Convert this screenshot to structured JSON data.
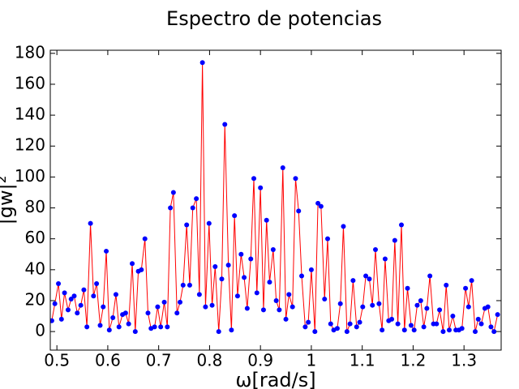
{
  "chart_data": {
    "type": "line",
    "title": "Espectro de potencias",
    "xlabel": "ω[rad/s]",
    "ylabel": "|gw|²",
    "x": [
      0.49,
      0.496,
      0.503,
      0.509,
      0.515,
      0.522,
      0.528,
      0.534,
      0.54,
      0.547,
      0.553,
      0.559,
      0.566,
      0.572,
      0.578,
      0.585,
      0.591,
      0.597,
      0.603,
      0.61,
      0.616,
      0.622,
      0.629,
      0.635,
      0.641,
      0.648,
      0.654,
      0.66,
      0.666,
      0.673,
      0.679,
      0.685,
      0.692,
      0.698,
      0.704,
      0.711,
      0.717,
      0.723,
      0.729,
      0.736,
      0.742,
      0.748,
      0.755,
      0.761,
      0.767,
      0.774,
      0.78,
      0.786,
      0.792,
      0.799,
      0.805,
      0.811,
      0.818,
      0.824,
      0.83,
      0.837,
      0.843,
      0.849,
      0.855,
      0.862,
      0.868,
      0.874,
      0.881,
      0.887,
      0.893,
      0.9,
      0.906,
      0.912,
      0.918,
      0.925,
      0.931,
      0.937,
      0.944,
      0.95,
      0.956,
      0.963,
      0.969,
      0.975,
      0.981,
      0.988,
      0.994,
      1.0,
      1.007,
      1.013,
      1.019,
      1.026,
      1.032,
      1.038,
      1.044,
      1.051,
      1.057,
      1.063,
      1.07,
      1.076,
      1.082,
      1.089,
      1.095,
      1.101,
      1.107,
      1.114,
      1.12,
      1.126,
      1.133,
      1.139,
      1.145,
      1.152,
      1.158,
      1.164,
      1.17,
      1.177,
      1.183,
      1.189,
      1.196,
      1.202,
      1.208,
      1.215,
      1.221,
      1.227,
      1.233,
      1.24,
      1.246,
      1.252,
      1.259,
      1.265,
      1.271,
      1.278,
      1.284,
      1.29,
      1.296,
      1.303,
      1.309,
      1.315,
      1.322,
      1.328,
      1.334,
      1.341,
      1.347,
      1.353,
      1.359,
      1.366
    ],
    "series": [
      {
        "line_color": "#ff0000",
        "marker_color": "#0000ff",
        "values": [
          7,
          18,
          31,
          8,
          25,
          14,
          21,
          23,
          12,
          17,
          27,
          3,
          70,
          23,
          31,
          4,
          16,
          52,
          1,
          9,
          24,
          3,
          11,
          12,
          5,
          44,
          0,
          39,
          40,
          60,
          12,
          2,
          3,
          16,
          3,
          19,
          3,
          80,
          90,
          12,
          19,
          30,
          69,
          30,
          80,
          86,
          24,
          174,
          16,
          70,
          17,
          42,
          0,
          34,
          134,
          43,
          1,
          75,
          23,
          50,
          35,
          15,
          47,
          99,
          25,
          93,
          14,
          72,
          32,
          53,
          20,
          14,
          106,
          8,
          24,
          16,
          99,
          78,
          36,
          3,
          6,
          40,
          0,
          83,
          81,
          21,
          60,
          5,
          1,
          2,
          18,
          68,
          0,
          5,
          33,
          3,
          6,
          16,
          36,
          34,
          17,
          53,
          18,
          1,
          47,
          7,
          8,
          59,
          5,
          69,
          1,
          28,
          4,
          1,
          17,
          20,
          3,
          15,
          36,
          5,
          5,
          14,
          0,
          30,
          1,
          10,
          1,
          1,
          2,
          28,
          16,
          33,
          0,
          8,
          5,
          15,
          16,
          3,
          0,
          11
        ]
      }
    ],
    "xlim": [
      0.487,
      1.373
    ],
    "ylim": [
      -12,
      182
    ],
    "xticks": [
      0.5,
      0.6,
      0.7,
      0.8,
      0.9,
      1.0,
      1.1,
      1.2,
      1.3
    ],
    "yticks": [
      0,
      20,
      40,
      60,
      80,
      100,
      120,
      140,
      160,
      180
    ],
    "grid": false
  }
}
